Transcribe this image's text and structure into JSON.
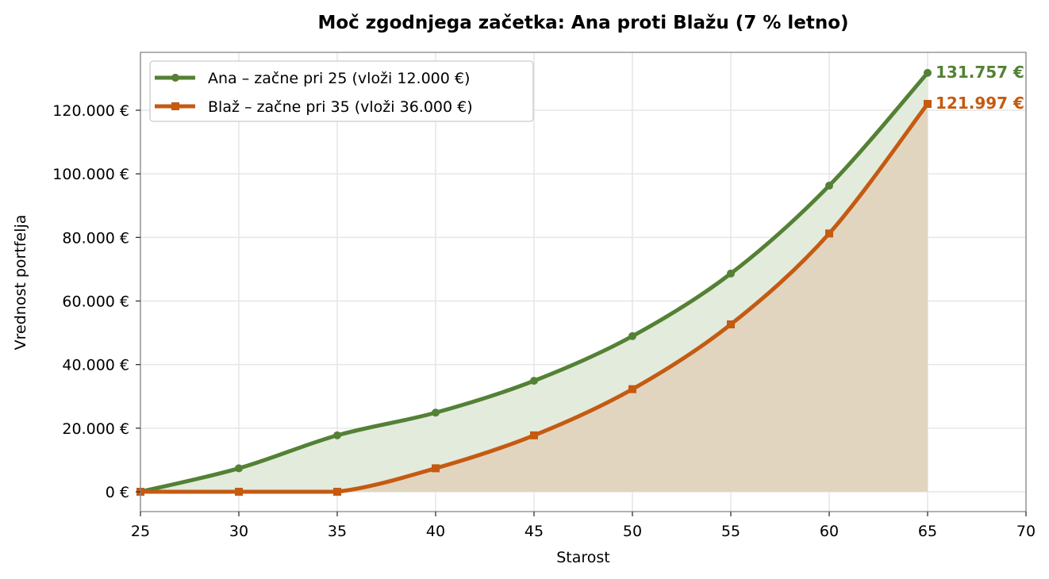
{
  "chart_data": {
    "type": "line",
    "title": "Moč zgodnjega začetka: Ana proti Blažu (7 % letno)",
    "xlabel": "Starost",
    "ylabel": "Vrednost portfelja",
    "xlim": [
      25,
      70
    ],
    "ylim": [
      -6500,
      138000
    ],
    "x_ticks": [
      25,
      30,
      35,
      40,
      45,
      50,
      55,
      60,
      65,
      70
    ],
    "y_ticks": [
      0,
      20000,
      40000,
      60000,
      80000,
      100000,
      120000
    ],
    "y_tick_labels": [
      "0 €",
      "20.000 €",
      "40.000 €",
      "60.000 €",
      "80.000 €",
      "100.000 €",
      "120.000 €"
    ],
    "grid": true,
    "legend_position": "upper left",
    "x": [
      25,
      30,
      35,
      40,
      45,
      50,
      55,
      60,
      65
    ],
    "series": [
      {
        "name": "Ana – začne pri 25 (vloži 12.000 €)",
        "color": "#538135",
        "marker": "circle",
        "fill": "#e3ebdc",
        "values": [
          0,
          7380,
          17740,
          24880,
          34900,
          48950,
          68650,
          96290,
          131757
        ],
        "end_label": "131.757 €"
      },
      {
        "name": "Blaž – začne pri 35 (vloži 36.000 €)",
        "color": "#c55a11",
        "marker": "square",
        "fill": "#e1d5c0",
        "values": [
          0,
          0,
          0,
          7380,
          17740,
          32270,
          52650,
          81240,
          121997
        ],
        "end_label": "121.997 €"
      }
    ]
  }
}
